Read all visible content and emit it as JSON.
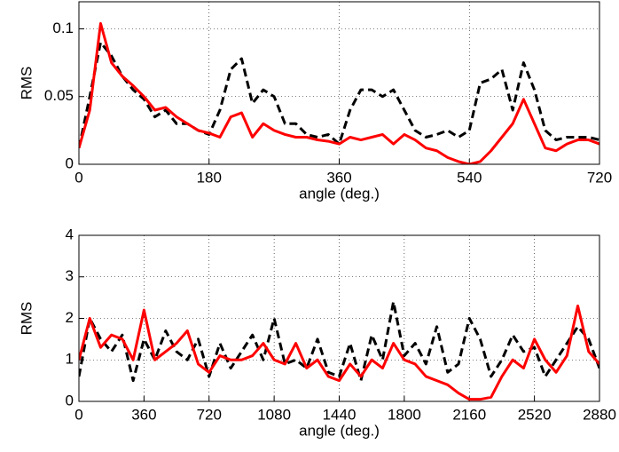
{
  "chart_data": [
    {
      "type": "line",
      "xlabel": "angle (deg.)",
      "ylabel": "RMS",
      "x": [
        0,
        15,
        30,
        45,
        60,
        75,
        90,
        105,
        120,
        135,
        150,
        165,
        180,
        195,
        210,
        225,
        240,
        255,
        270,
        285,
        300,
        315,
        330,
        345,
        360,
        375,
        390,
        405,
        420,
        435,
        450,
        465,
        480,
        495,
        510,
        525,
        540,
        555,
        570,
        585,
        600,
        615,
        630,
        645,
        660,
        675,
        690,
        705,
        720
      ],
      "series": [
        {
          "color": "#000000",
          "linestyle": "dashed",
          "values": [
            0.012,
            0.05,
            0.09,
            0.08,
            0.065,
            0.055,
            0.048,
            0.035,
            0.04,
            0.03,
            0.03,
            0.025,
            0.022,
            0.04,
            0.07,
            0.078,
            0.045,
            0.055,
            0.05,
            0.03,
            0.03,
            0.022,
            0.02,
            0.022,
            0.015,
            0.04,
            0.055,
            0.055,
            0.05,
            0.055,
            0.04,
            0.025,
            0.02,
            0.022,
            0.025,
            0.02,
            0.025,
            0.06,
            0.063,
            0.07,
            0.04,
            0.075,
            0.055,
            0.025,
            0.018,
            0.02,
            0.02,
            0.02,
            0.018
          ]
        },
        {
          "color": "#ff0000",
          "linestyle": "solid",
          "values": [
            0.012,
            0.04,
            0.104,
            0.075,
            0.065,
            0.058,
            0.05,
            0.04,
            0.042,
            0.035,
            0.03,
            0.025,
            0.023,
            0.02,
            0.035,
            0.038,
            0.02,
            0.03,
            0.025,
            0.022,
            0.02,
            0.02,
            0.018,
            0.017,
            0.015,
            0.02,
            0.018,
            0.02,
            0.022,
            0.015,
            0.022,
            0.018,
            0.012,
            0.01,
            0.005,
            0.002,
            0,
            0.002,
            0.01,
            0.02,
            0.03,
            0.048,
            0.03,
            0.012,
            0.01,
            0.015,
            0.018,
            0.018,
            0.015
          ]
        }
      ],
      "xlim": [
        0,
        720
      ],
      "ylim": [
        0,
        0.12
      ],
      "xticks": [
        0,
        180,
        360,
        540,
        720
      ],
      "yticks": [
        0,
        0.05,
        0.1
      ],
      "grid": true
    },
    {
      "type": "line",
      "xlabel": "angle (deg.)",
      "ylabel": "RMS",
      "x": [
        0,
        60,
        120,
        180,
        240,
        300,
        360,
        420,
        480,
        540,
        600,
        660,
        720,
        780,
        840,
        900,
        960,
        1020,
        1080,
        1140,
        1200,
        1260,
        1320,
        1380,
        1440,
        1500,
        1560,
        1620,
        1680,
        1740,
        1800,
        1860,
        1920,
        1980,
        2040,
        2100,
        2160,
        2220,
        2280,
        2340,
        2400,
        2460,
        2520,
        2580,
        2640,
        2700,
        2760,
        2820,
        2880
      ],
      "series": [
        {
          "color": "#000000",
          "linestyle": "dashed",
          "values": [
            0.6,
            2.0,
            1.5,
            1.2,
            1.6,
            0.5,
            1.5,
            1.0,
            1.7,
            1.2,
            1.0,
            1.5,
            0.6,
            1.4,
            0.8,
            1.2,
            1.6,
            1.0,
            2.0,
            0.9,
            1.0,
            0.8,
            1.5,
            0.7,
            0.6,
            1.4,
            0.5,
            1.6,
            1.0,
            2.4,
            1.1,
            1.4,
            0.9,
            1.8,
            0.7,
            0.9,
            2.0,
            1.5,
            0.6,
            1.0,
            1.6,
            1.2,
            1.3,
            0.6,
            1.0,
            1.4,
            1.8,
            1.5,
            0.8
          ]
        },
        {
          "color": "#ff0000",
          "linestyle": "solid",
          "values": [
            1.0,
            2.0,
            1.3,
            1.6,
            1.5,
            1.0,
            2.2,
            1.0,
            1.2,
            1.4,
            1.7,
            0.9,
            0.7,
            1.1,
            1.0,
            1.0,
            1.1,
            1.4,
            1.0,
            0.9,
            1.4,
            0.8,
            1.0,
            0.6,
            0.5,
            0.9,
            0.6,
            1.0,
            0.8,
            1.4,
            1.0,
            0.9,
            0.6,
            0.5,
            0.4,
            0.2,
            0.05,
            0.05,
            0.1,
            0.6,
            1.0,
            0.8,
            1.5,
            1.0,
            0.7,
            1.1,
            2.3,
            1.2,
            0.9
          ]
        }
      ],
      "xlim": [
        0,
        2880
      ],
      "ylim": [
        0,
        4
      ],
      "xticks": [
        0,
        360,
        720,
        1080,
        1440,
        1800,
        2160,
        2520,
        2880
      ],
      "yticks": [
        0,
        1,
        2,
        3,
        4
      ],
      "grid": true
    }
  ]
}
